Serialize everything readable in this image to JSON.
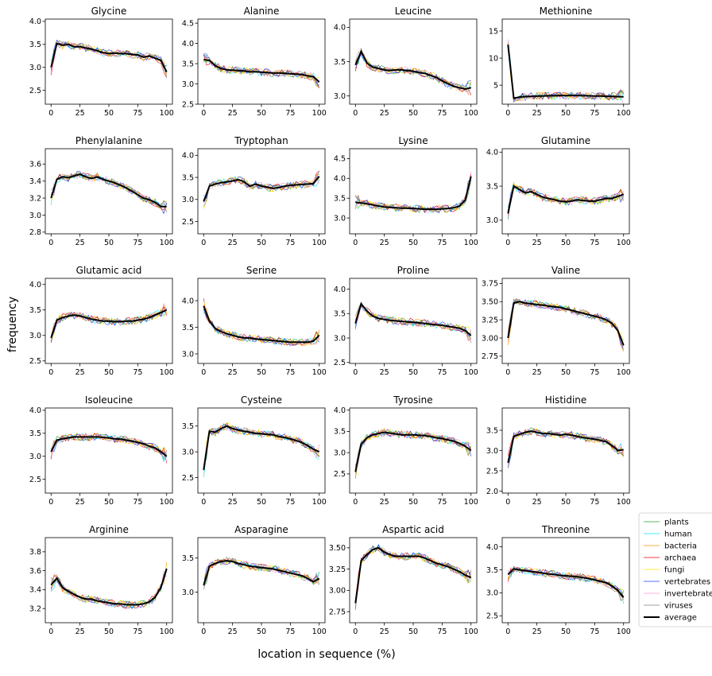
{
  "chart_data": {
    "type": "line",
    "ylabel": "frequency",
    "xlabel": "location in sequence (%)",
    "x_ticks": [
      0,
      25,
      50,
      75,
      100
    ],
    "legend_placement": "right, beside bottom-right panel",
    "series_styles": [
      {
        "name": "plants",
        "color": "#2ca02c"
      },
      {
        "name": "human",
        "color": "#00e5ff"
      },
      {
        "name": "bacteria",
        "color": "#ff9900"
      },
      {
        "name": "archaea",
        "color": "#e8000b"
      },
      {
        "name": "fungi",
        "color": "#ffe600"
      },
      {
        "name": "vertebrates",
        "color": "#1f3fff"
      },
      {
        "name": "invertebrates",
        "color": "#ff9ad5"
      },
      {
        "name": "viruses",
        "color": "#808080"
      },
      {
        "name": "average",
        "color": "#000000"
      }
    ],
    "average_x": [
      0,
      5,
      10,
      15,
      20,
      25,
      30,
      35,
      40,
      45,
      50,
      55,
      60,
      65,
      70,
      75,
      80,
      85,
      90,
      95,
      100
    ],
    "panels": [
      {
        "title": "Glycine",
        "ylim": [
          2.2,
          4.05
        ],
        "yticks": [
          "2.5",
          "3.0",
          "3.5",
          "4.0"
        ],
        "average": [
          3.0,
          3.52,
          3.48,
          3.5,
          3.45,
          3.45,
          3.42,
          3.4,
          3.36,
          3.32,
          3.3,
          3.31,
          3.3,
          3.3,
          3.28,
          3.27,
          3.22,
          3.25,
          3.2,
          3.15,
          2.9
        ]
      },
      {
        "title": "Alanine",
        "ylim": [
          2.5,
          4.6
        ],
        "yticks": [
          "2.5",
          "3.0",
          "3.5",
          "4.0",
          "4.5"
        ],
        "average": [
          3.6,
          3.58,
          3.45,
          3.38,
          3.35,
          3.34,
          3.33,
          3.32,
          3.3,
          3.3,
          3.29,
          3.28,
          3.27,
          3.27,
          3.26,
          3.25,
          3.24,
          3.23,
          3.2,
          3.18,
          3.05
        ]
      },
      {
        "title": "Leucine",
        "ylim": [
          2.88,
          4.12
        ],
        "yticks": [
          "3.0",
          "3.5",
          "4.0"
        ],
        "average": [
          3.45,
          3.65,
          3.48,
          3.42,
          3.4,
          3.38,
          3.37,
          3.38,
          3.38,
          3.37,
          3.36,
          3.34,
          3.33,
          3.3,
          3.27,
          3.22,
          3.18,
          3.14,
          3.12,
          3.1,
          3.12
        ]
      },
      {
        "title": "Methionine",
        "ylim": [
          1.5,
          17.2
        ],
        "yticks": [
          "5",
          "10",
          "15"
        ],
        "average": [
          12.5,
          2.6,
          2.8,
          2.9,
          2.95,
          3.0,
          3.0,
          3.05,
          3.05,
          3.1,
          3.1,
          3.1,
          3.1,
          3.05,
          3.05,
          3.0,
          3.0,
          2.95,
          2.95,
          2.9,
          2.85
        ]
      },
      {
        "title": "Phenylalanine",
        "ylim": [
          2.78,
          3.78
        ],
        "yticks": [
          "2.8",
          "3.0",
          "3.2",
          "3.4",
          "3.6"
        ],
        "average": [
          3.2,
          3.42,
          3.45,
          3.44,
          3.46,
          3.48,
          3.45,
          3.43,
          3.45,
          3.42,
          3.4,
          3.38,
          3.35,
          3.32,
          3.28,
          3.24,
          3.2,
          3.18,
          3.15,
          3.1,
          3.1
        ]
      },
      {
        "title": "Tryptophan",
        "ylim": [
          2.22,
          4.15
        ],
        "yticks": [
          "2.5",
          "3.0",
          "3.5",
          "4.0"
        ],
        "average": [
          2.95,
          3.3,
          3.35,
          3.38,
          3.4,
          3.42,
          3.45,
          3.4,
          3.3,
          3.35,
          3.3,
          3.28,
          3.25,
          3.27,
          3.3,
          3.32,
          3.33,
          3.34,
          3.35,
          3.36,
          3.52
        ]
      },
      {
        "title": "Lysine",
        "ylim": [
          2.6,
          4.75
        ],
        "yticks": [
          "3.0",
          "3.5",
          "4.0",
          "4.5"
        ],
        "average": [
          3.4,
          3.38,
          3.36,
          3.33,
          3.3,
          3.28,
          3.27,
          3.26,
          3.25,
          3.25,
          3.24,
          3.23,
          3.22,
          3.22,
          3.22,
          3.23,
          3.24,
          3.26,
          3.3,
          3.45,
          4.05
        ]
      },
      {
        "title": "Glutamine",
        "ylim": [
          2.8,
          4.05
        ],
        "yticks": [
          "3.0",
          "3.5",
          "4.0"
        ],
        "average": [
          3.1,
          3.5,
          3.45,
          3.4,
          3.42,
          3.38,
          3.34,
          3.32,
          3.3,
          3.28,
          3.27,
          3.28,
          3.3,
          3.29,
          3.28,
          3.28,
          3.3,
          3.32,
          3.32,
          3.35,
          3.38
        ]
      },
      {
        "title": "Glutamic acid",
        "ylim": [
          2.45,
          4.12
        ],
        "yticks": [
          "2.5",
          "3.0",
          "3.5",
          "4.0"
        ],
        "average": [
          2.95,
          3.3,
          3.35,
          3.38,
          3.4,
          3.38,
          3.35,
          3.32,
          3.3,
          3.28,
          3.28,
          3.27,
          3.27,
          3.28,
          3.28,
          3.3,
          3.32,
          3.35,
          3.4,
          3.45,
          3.5
        ]
      },
      {
        "title": "Serine",
        "ylim": [
          2.82,
          4.42
        ],
        "yticks": [
          "3.0",
          "3.5",
          "4.0"
        ],
        "average": [
          3.9,
          3.62,
          3.48,
          3.42,
          3.38,
          3.35,
          3.32,
          3.3,
          3.3,
          3.28,
          3.27,
          3.26,
          3.25,
          3.24,
          3.23,
          3.22,
          3.22,
          3.22,
          3.22,
          3.24,
          3.35
        ]
      },
      {
        "title": "Proline",
        "ylim": [
          2.48,
          4.22
        ],
        "yticks": [
          "2.5",
          "3.0",
          "3.5",
          "4.0"
        ],
        "average": [
          3.3,
          3.7,
          3.55,
          3.45,
          3.4,
          3.38,
          3.36,
          3.35,
          3.34,
          3.33,
          3.32,
          3.31,
          3.3,
          3.28,
          3.27,
          3.26,
          3.24,
          3.22,
          3.2,
          3.15,
          3.05
        ]
      },
      {
        "title": "Valine",
        "ylim": [
          2.65,
          3.82
        ],
        "yticks": [
          "2.75",
          "3.00",
          "3.25",
          "3.50",
          "3.75"
        ],
        "average": [
          3.0,
          3.48,
          3.5,
          3.48,
          3.47,
          3.46,
          3.45,
          3.44,
          3.43,
          3.42,
          3.4,
          3.38,
          3.36,
          3.34,
          3.32,
          3.3,
          3.28,
          3.25,
          3.2,
          3.1,
          2.9
        ]
      },
      {
        "title": "Isoleucine",
        "ylim": [
          2.2,
          4.05
        ],
        "yticks": [
          "2.5",
          "3.0",
          "3.5",
          "4.0"
        ],
        "average": [
          3.1,
          3.35,
          3.38,
          3.4,
          3.42,
          3.42,
          3.42,
          3.42,
          3.42,
          3.41,
          3.4,
          3.38,
          3.37,
          3.35,
          3.33,
          3.3,
          3.27,
          3.22,
          3.18,
          3.1,
          3.0
        ]
      },
      {
        "title": "Cysteine",
        "ylim": [
          2.2,
          3.85
        ],
        "yticks": [
          "2.5",
          "3.0",
          "3.5"
        ],
        "average": [
          2.65,
          3.4,
          3.38,
          3.45,
          3.5,
          3.45,
          3.42,
          3.4,
          3.38,
          3.36,
          3.35,
          3.34,
          3.33,
          3.3,
          3.28,
          3.25,
          3.22,
          3.18,
          3.12,
          3.05,
          3.0
        ]
      },
      {
        "title": "Tyrosine",
        "ylim": [
          2.05,
          4.05
        ],
        "yticks": [
          "2.5",
          "3.0",
          "3.5",
          "4.0"
        ],
        "average": [
          2.55,
          3.2,
          3.35,
          3.42,
          3.45,
          3.48,
          3.46,
          3.44,
          3.42,
          3.42,
          3.42,
          3.41,
          3.4,
          3.38,
          3.35,
          3.33,
          3.3,
          3.27,
          3.22,
          3.15,
          3.05
        ]
      },
      {
        "title": "Histidine",
        "ylim": [
          1.95,
          4.05
        ],
        "yticks": [
          "2.0",
          "2.5",
          "3.0",
          "3.5"
        ],
        "average": [
          2.7,
          3.35,
          3.4,
          3.45,
          3.48,
          3.45,
          3.42,
          3.42,
          3.4,
          3.38,
          3.4,
          3.38,
          3.35,
          3.32,
          3.3,
          3.28,
          3.25,
          3.22,
          3.12,
          3.0,
          3.02
        ]
      },
      {
        "title": "Arginine",
        "ylim": [
          3.05,
          3.95
        ],
        "yticks": [
          "3.2",
          "3.4",
          "3.6",
          "3.8"
        ],
        "average": [
          3.45,
          3.52,
          3.42,
          3.38,
          3.35,
          3.32,
          3.3,
          3.3,
          3.28,
          3.27,
          3.26,
          3.25,
          3.25,
          3.24,
          3.24,
          3.24,
          3.25,
          3.27,
          3.32,
          3.42,
          3.62
        ]
      },
      {
        "title": "Asparagine",
        "ylim": [
          2.55,
          3.8
        ],
        "yticks": [
          "3.0",
          "3.5"
        ],
        "average": [
          3.1,
          3.38,
          3.42,
          3.45,
          3.46,
          3.45,
          3.42,
          3.4,
          3.38,
          3.37,
          3.36,
          3.35,
          3.34,
          3.32,
          3.3,
          3.28,
          3.26,
          3.24,
          3.2,
          3.15,
          3.2
        ]
      },
      {
        "title": "Aspartic acid",
        "ylim": [
          2.62,
          3.62
        ],
        "yticks": [
          "2.75",
          "3.00",
          "3.25",
          "3.50"
        ],
        "average": [
          2.85,
          3.35,
          3.42,
          3.48,
          3.5,
          3.45,
          3.42,
          3.4,
          3.4,
          3.4,
          3.4,
          3.4,
          3.38,
          3.35,
          3.32,
          3.3,
          3.28,
          3.25,
          3.22,
          3.18,
          3.15
        ]
      },
      {
        "title": "Threonine",
        "ylim": [
          2.35,
          4.2
        ],
        "yticks": [
          "2.5",
          "3.0",
          "3.5",
          "4.0"
        ],
        "average": [
          3.4,
          3.52,
          3.5,
          3.48,
          3.46,
          3.45,
          3.43,
          3.41,
          3.4,
          3.38,
          3.37,
          3.36,
          3.35,
          3.33,
          3.31,
          3.28,
          3.25,
          3.22,
          3.15,
          3.05,
          2.9
        ]
      }
    ]
  }
}
